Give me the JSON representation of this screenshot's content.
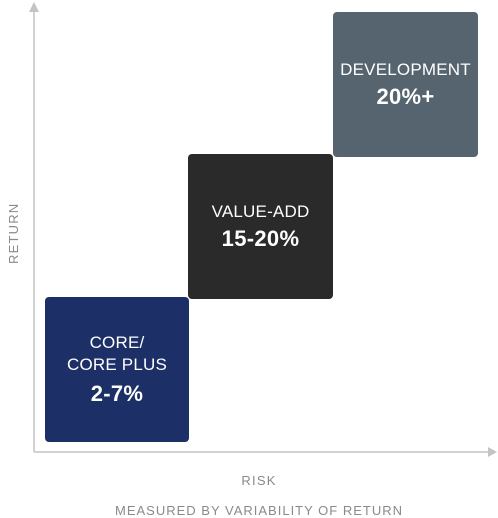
{
  "axes": {
    "y_label": "RETURN",
    "x_label": "RISK",
    "x_sublabel": "MEASURED BY VARIABILITY OF RETURN"
  },
  "strategies": [
    {
      "name": "CORE/\nCORE PLUS",
      "return_range": "2-7%",
      "color": "#1c2f66"
    },
    {
      "name": "VALUE-ADD",
      "return_range": "15-20%",
      "color": "#2a2a2a"
    },
    {
      "name": "DEVELOPMENT",
      "return_range": "20%+",
      "color": "#56646f"
    }
  ],
  "axis_color": "#c4c4c4",
  "label_color": "#8a8a8a"
}
